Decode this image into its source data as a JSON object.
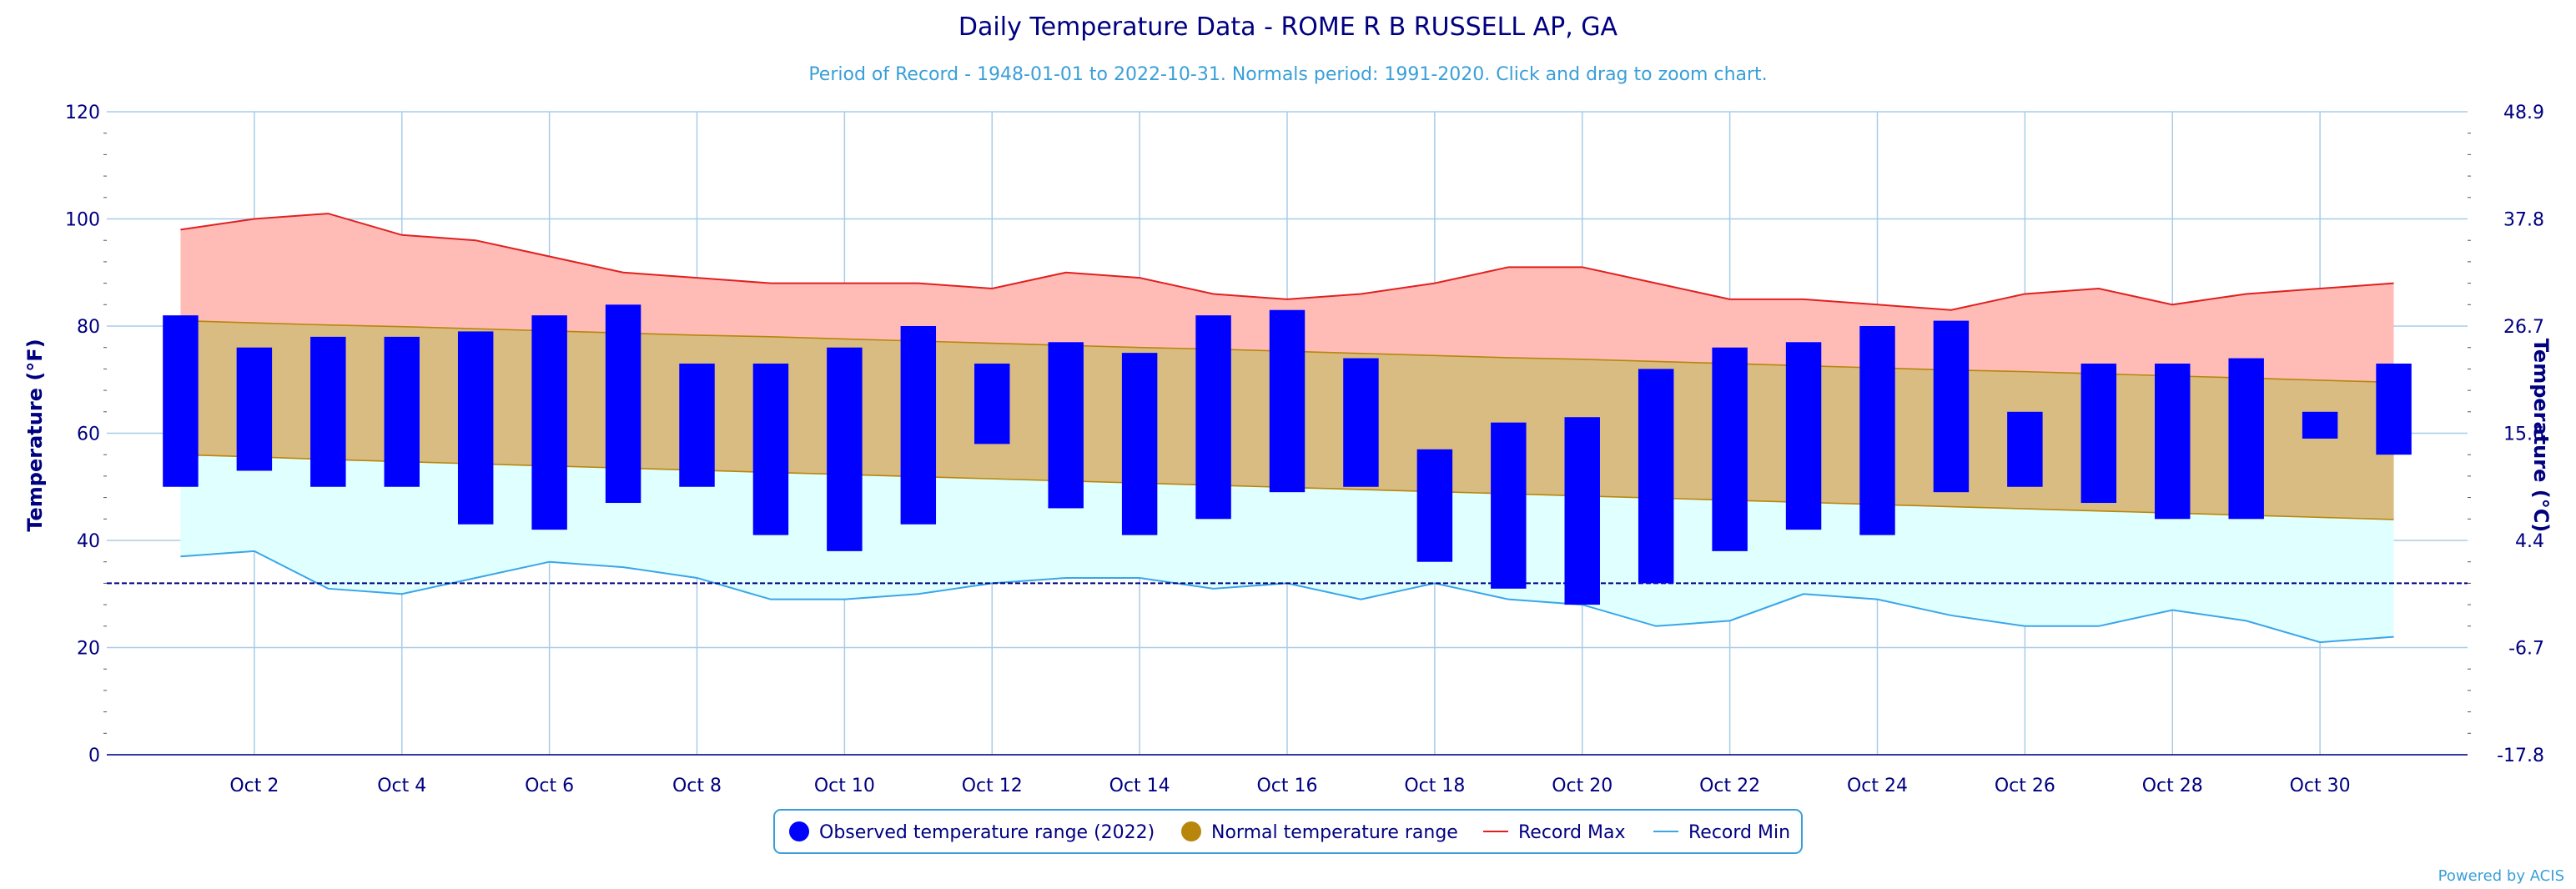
{
  "colors": {
    "observed": "#0000ff",
    "normal": "#b8860b",
    "normal_fill": "#d9bc82",
    "record_max": "#e02020",
    "record_max_fill": "#ffbcb7",
    "record_min": "#3aa6e8",
    "record_min_fill": "#e0ffff",
    "freezing": "#000080",
    "grid": "#a8cce8",
    "axis_text": "#000080"
  },
  "credit": "Powered by ACIS",
  "chart_data": {
    "type": "bar",
    "title": "Daily Temperature Data - ROME R B RUSSELL AP, GA",
    "subtitle": "Period of Record - 1948-01-01 to 2022-10-31. Normals period: 1991-2020. Click and drag to zoom chart.",
    "ylabel": "Temperature (°F)",
    "y2label": "Temperature (°C)",
    "ylim": [
      0,
      120
    ],
    "yticks": [
      0,
      20,
      40,
      60,
      80,
      100,
      120
    ],
    "y2ticks": [
      "-17.8",
      "-6.7",
      "4.4",
      "15.6",
      "26.7",
      "37.8",
      "48.9"
    ],
    "x": [
      1,
      2,
      3,
      4,
      5,
      6,
      7,
      8,
      9,
      10,
      11,
      12,
      13,
      14,
      15,
      16,
      17,
      18,
      19,
      20,
      21,
      22,
      23,
      24,
      25,
      26,
      27,
      28,
      29,
      30,
      31
    ],
    "xlim": [
      0,
      32
    ],
    "xticks": [
      {
        "day": 2,
        "label": "Oct 2"
      },
      {
        "day": 4,
        "label": "Oct 4"
      },
      {
        "day": 6,
        "label": "Oct 6"
      },
      {
        "day": 8,
        "label": "Oct 8"
      },
      {
        "day": 10,
        "label": "Oct 10"
      },
      {
        "day": 12,
        "label": "Oct 12"
      },
      {
        "day": 14,
        "label": "Oct 14"
      },
      {
        "day": 16,
        "label": "Oct 16"
      },
      {
        "day": 18,
        "label": "Oct 18"
      },
      {
        "day": 20,
        "label": "Oct 20"
      },
      {
        "day": 22,
        "label": "Oct 22"
      },
      {
        "day": 24,
        "label": "Oct 24"
      },
      {
        "day": 26,
        "label": "Oct 26"
      },
      {
        "day": 28,
        "label": "Oct 28"
      },
      {
        "day": 30,
        "label": "Oct 30"
      }
    ],
    "freezing_line": 32,
    "grid": true,
    "legend_position": "bottom-center",
    "series": [
      {
        "name": "Observed temperature range (2022)",
        "type": "columnrange",
        "low": [
          50,
          53,
          50,
          50,
          43,
          42,
          47,
          50,
          41,
          38,
          43,
          58,
          46,
          41,
          44,
          49,
          50,
          36,
          31,
          28,
          32,
          38,
          42,
          41,
          49,
          50,
          47,
          44,
          44,
          59,
          56
        ],
        "high": [
          82,
          76,
          78,
          78,
          79,
          82,
          84,
          73,
          73,
          76,
          80,
          73,
          77,
          75,
          82,
          83,
          74,
          57,
          62,
          63,
          72,
          76,
          77,
          80,
          81,
          64,
          73,
          73,
          74,
          64,
          73
        ]
      },
      {
        "name": "Normal temperature range",
        "type": "arearange",
        "low": [
          56,
          55.6,
          55.1,
          54.7,
          54.3,
          53.9,
          53.5,
          53.1,
          52.7,
          52.3,
          51.9,
          51.5,
          51.1,
          50.7,
          50.3,
          49.9,
          49.5,
          49.1,
          48.7,
          48.3,
          47.9,
          47.5,
          47.1,
          46.7,
          46.3,
          45.9,
          45.5,
          45.1,
          44.7,
          44.3,
          43.9
        ],
        "high": [
          81,
          80.6,
          80.2,
          79.9,
          79.5,
          79.1,
          78.7,
          78.3,
          78,
          77.6,
          77.2,
          76.8,
          76.4,
          76,
          75.7,
          75.3,
          74.9,
          74.5,
          74.1,
          73.8,
          73.4,
          73,
          72.6,
          72.2,
          71.8,
          71.5,
          71.1,
          70.7,
          70.3,
          69.9,
          69.5
        ]
      },
      {
        "name": "Record Max",
        "type": "line",
        "values": [
          98,
          100,
          101,
          97,
          96,
          93,
          90,
          89,
          88,
          88,
          88,
          87,
          90,
          89,
          86,
          85,
          86,
          88,
          91,
          91,
          88,
          85,
          85,
          84,
          83,
          86,
          87,
          84,
          86,
          87,
          88
        ]
      },
      {
        "name": "Record Min",
        "type": "line",
        "values": [
          37,
          38,
          31,
          30,
          33,
          36,
          35,
          33,
          29,
          29,
          30,
          32,
          33,
          33,
          31,
          32,
          29,
          32,
          29,
          28,
          24,
          25,
          30,
          29,
          26,
          24,
          24,
          27,
          25,
          21,
          22
        ]
      }
    ]
  }
}
